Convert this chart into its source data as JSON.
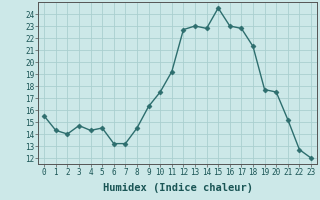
{
  "x": [
    0,
    1,
    2,
    3,
    4,
    5,
    6,
    7,
    8,
    9,
    10,
    11,
    12,
    13,
    14,
    15,
    16,
    17,
    18,
    19,
    20,
    21,
    22,
    23
  ],
  "y": [
    15.5,
    14.3,
    14.0,
    14.7,
    14.3,
    14.5,
    13.2,
    13.2,
    14.5,
    16.3,
    17.5,
    19.2,
    22.7,
    23.0,
    22.8,
    24.5,
    23.0,
    22.8,
    21.3,
    17.7,
    17.5,
    15.2,
    12.7,
    12.0
  ],
  "line_color": "#2d6e6e",
  "marker": "D",
  "markersize": 2.5,
  "linewidth": 1.0,
  "bg_color": "#cce8e8",
  "grid_color": "#aacfcf",
  "xlabel": "Humidex (Indice chaleur)",
  "xlim": [
    -0.5,
    23.5
  ],
  "ylim": [
    11.5,
    25.0
  ],
  "yticks": [
    12,
    13,
    14,
    15,
    16,
    17,
    18,
    19,
    20,
    21,
    22,
    23,
    24
  ],
  "xtick_labels": [
    "0",
    "1",
    "2",
    "3",
    "4",
    "5",
    "6",
    "7",
    "8",
    "9",
    "10",
    "11",
    "12",
    "13",
    "14",
    "15",
    "16",
    "17",
    "18",
    "19",
    "20",
    "21",
    "22",
    "23"
  ],
  "tick_fontsize": 5.5,
  "xlabel_fontsize": 7.5
}
